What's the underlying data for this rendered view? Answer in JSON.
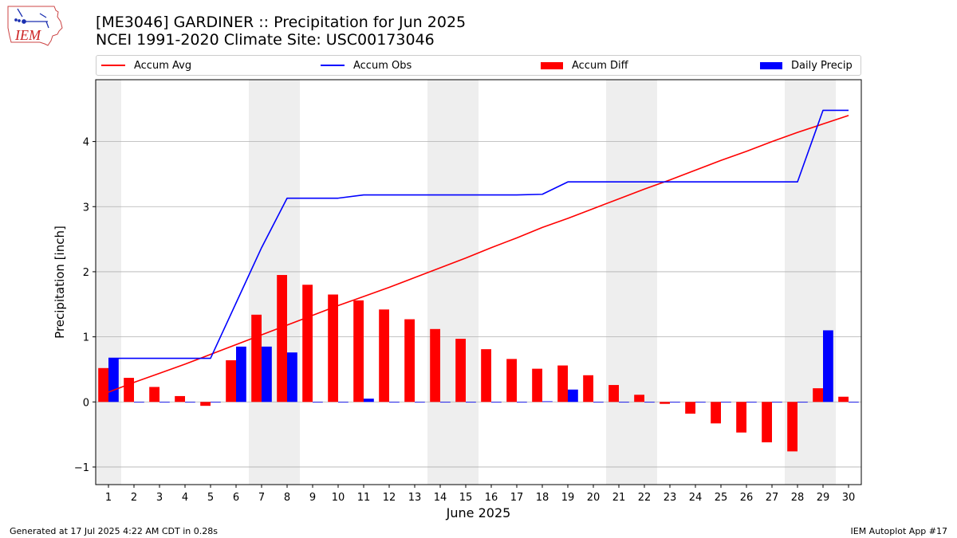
{
  "header": {
    "title_line1": "[ME3046] GARDINER :: Precipitation for Jun 2025",
    "title_line2": "NCEI 1991-2020 Climate Site: USC00173046",
    "logo_text": "IEM"
  },
  "footer": {
    "left": "Generated at 17 Jul 2025 4:22 AM CDT in 0.28s",
    "right": "IEM Autoplot App #17"
  },
  "colors": {
    "avg": "#ff0000",
    "obs": "#0000ff",
    "diff": "#ff0000",
    "daily": "#0000ff",
    "weekend_shade": "#eeeeee",
    "grid": "#b0b0b0"
  },
  "chart_data": {
    "type": "bar",
    "title": "[ME3046] GARDINER :: Precipitation for Jun 2025",
    "subtitle": "NCEI 1991-2020 Climate Site: USC00173046",
    "xlabel": "June 2025",
    "ylabel": "Precipitation [inch]",
    "xlim": [
      0.5,
      30.5
    ],
    "ylim": [
      -1.27,
      4.95
    ],
    "yticks": [
      -1,
      0,
      1,
      2,
      3,
      4
    ],
    "ytick_labels": [
      "−1",
      "0",
      "1",
      "2",
      "3",
      "4"
    ],
    "grid": "horizontal",
    "legend_placement": "top, above plot",
    "categories": [
      "1",
      "2",
      "3",
      "4",
      "5",
      "6",
      "7",
      "8",
      "9",
      "10",
      "11",
      "12",
      "13",
      "14",
      "15",
      "16",
      "17",
      "18",
      "19",
      "20",
      "21",
      "22",
      "23",
      "24",
      "25",
      "26",
      "27",
      "28",
      "29",
      "30"
    ],
    "weekend_days": [
      1,
      7,
      8,
      14,
      15,
      21,
      22,
      28,
      29
    ],
    "series": [
      {
        "name": "Accum Avg",
        "kind": "line",
        "values": [
          0.15,
          0.3,
          0.44,
          0.58,
          0.73,
          0.88,
          1.03,
          1.18,
          1.33,
          1.48,
          1.62,
          1.76,
          1.91,
          2.06,
          2.21,
          2.37,
          2.52,
          2.68,
          2.82,
          2.97,
          3.12,
          3.27,
          3.41,
          3.56,
          3.71,
          3.85,
          4.0,
          4.14,
          4.27,
          4.4
        ]
      },
      {
        "name": "Accum Obs",
        "kind": "line",
        "values": [
          0.67,
          0.67,
          0.67,
          0.67,
          0.67,
          1.52,
          2.37,
          3.13,
          3.13,
          3.13,
          3.18,
          3.18,
          3.18,
          3.18,
          3.18,
          3.18,
          3.18,
          3.19,
          3.38,
          3.38,
          3.38,
          3.38,
          3.38,
          3.38,
          3.38,
          3.38,
          3.38,
          3.38,
          4.48,
          4.48
        ]
      },
      {
        "name": "Accum Diff",
        "kind": "bar",
        "values": [
          0.52,
          0.37,
          0.23,
          0.09,
          -0.06,
          0.64,
          1.34,
          1.95,
          1.8,
          1.65,
          1.56,
          1.42,
          1.27,
          1.12,
          0.97,
          0.81,
          0.66,
          0.51,
          0.56,
          0.41,
          0.26,
          0.11,
          -0.03,
          -0.18,
          -0.33,
          -0.47,
          -0.62,
          -0.76,
          0.21,
          0.08
        ]
      },
      {
        "name": "Daily Precip",
        "kind": "bar",
        "values": [
          0.67,
          0,
          0,
          0,
          0,
          0.85,
          0.85,
          0.76,
          0,
          0,
          0.05,
          0,
          0,
          0,
          0,
          0,
          0,
          0.01,
          0.19,
          0,
          0,
          0,
          0,
          0,
          0,
          0,
          0,
          0,
          1.1,
          0
        ]
      }
    ]
  }
}
